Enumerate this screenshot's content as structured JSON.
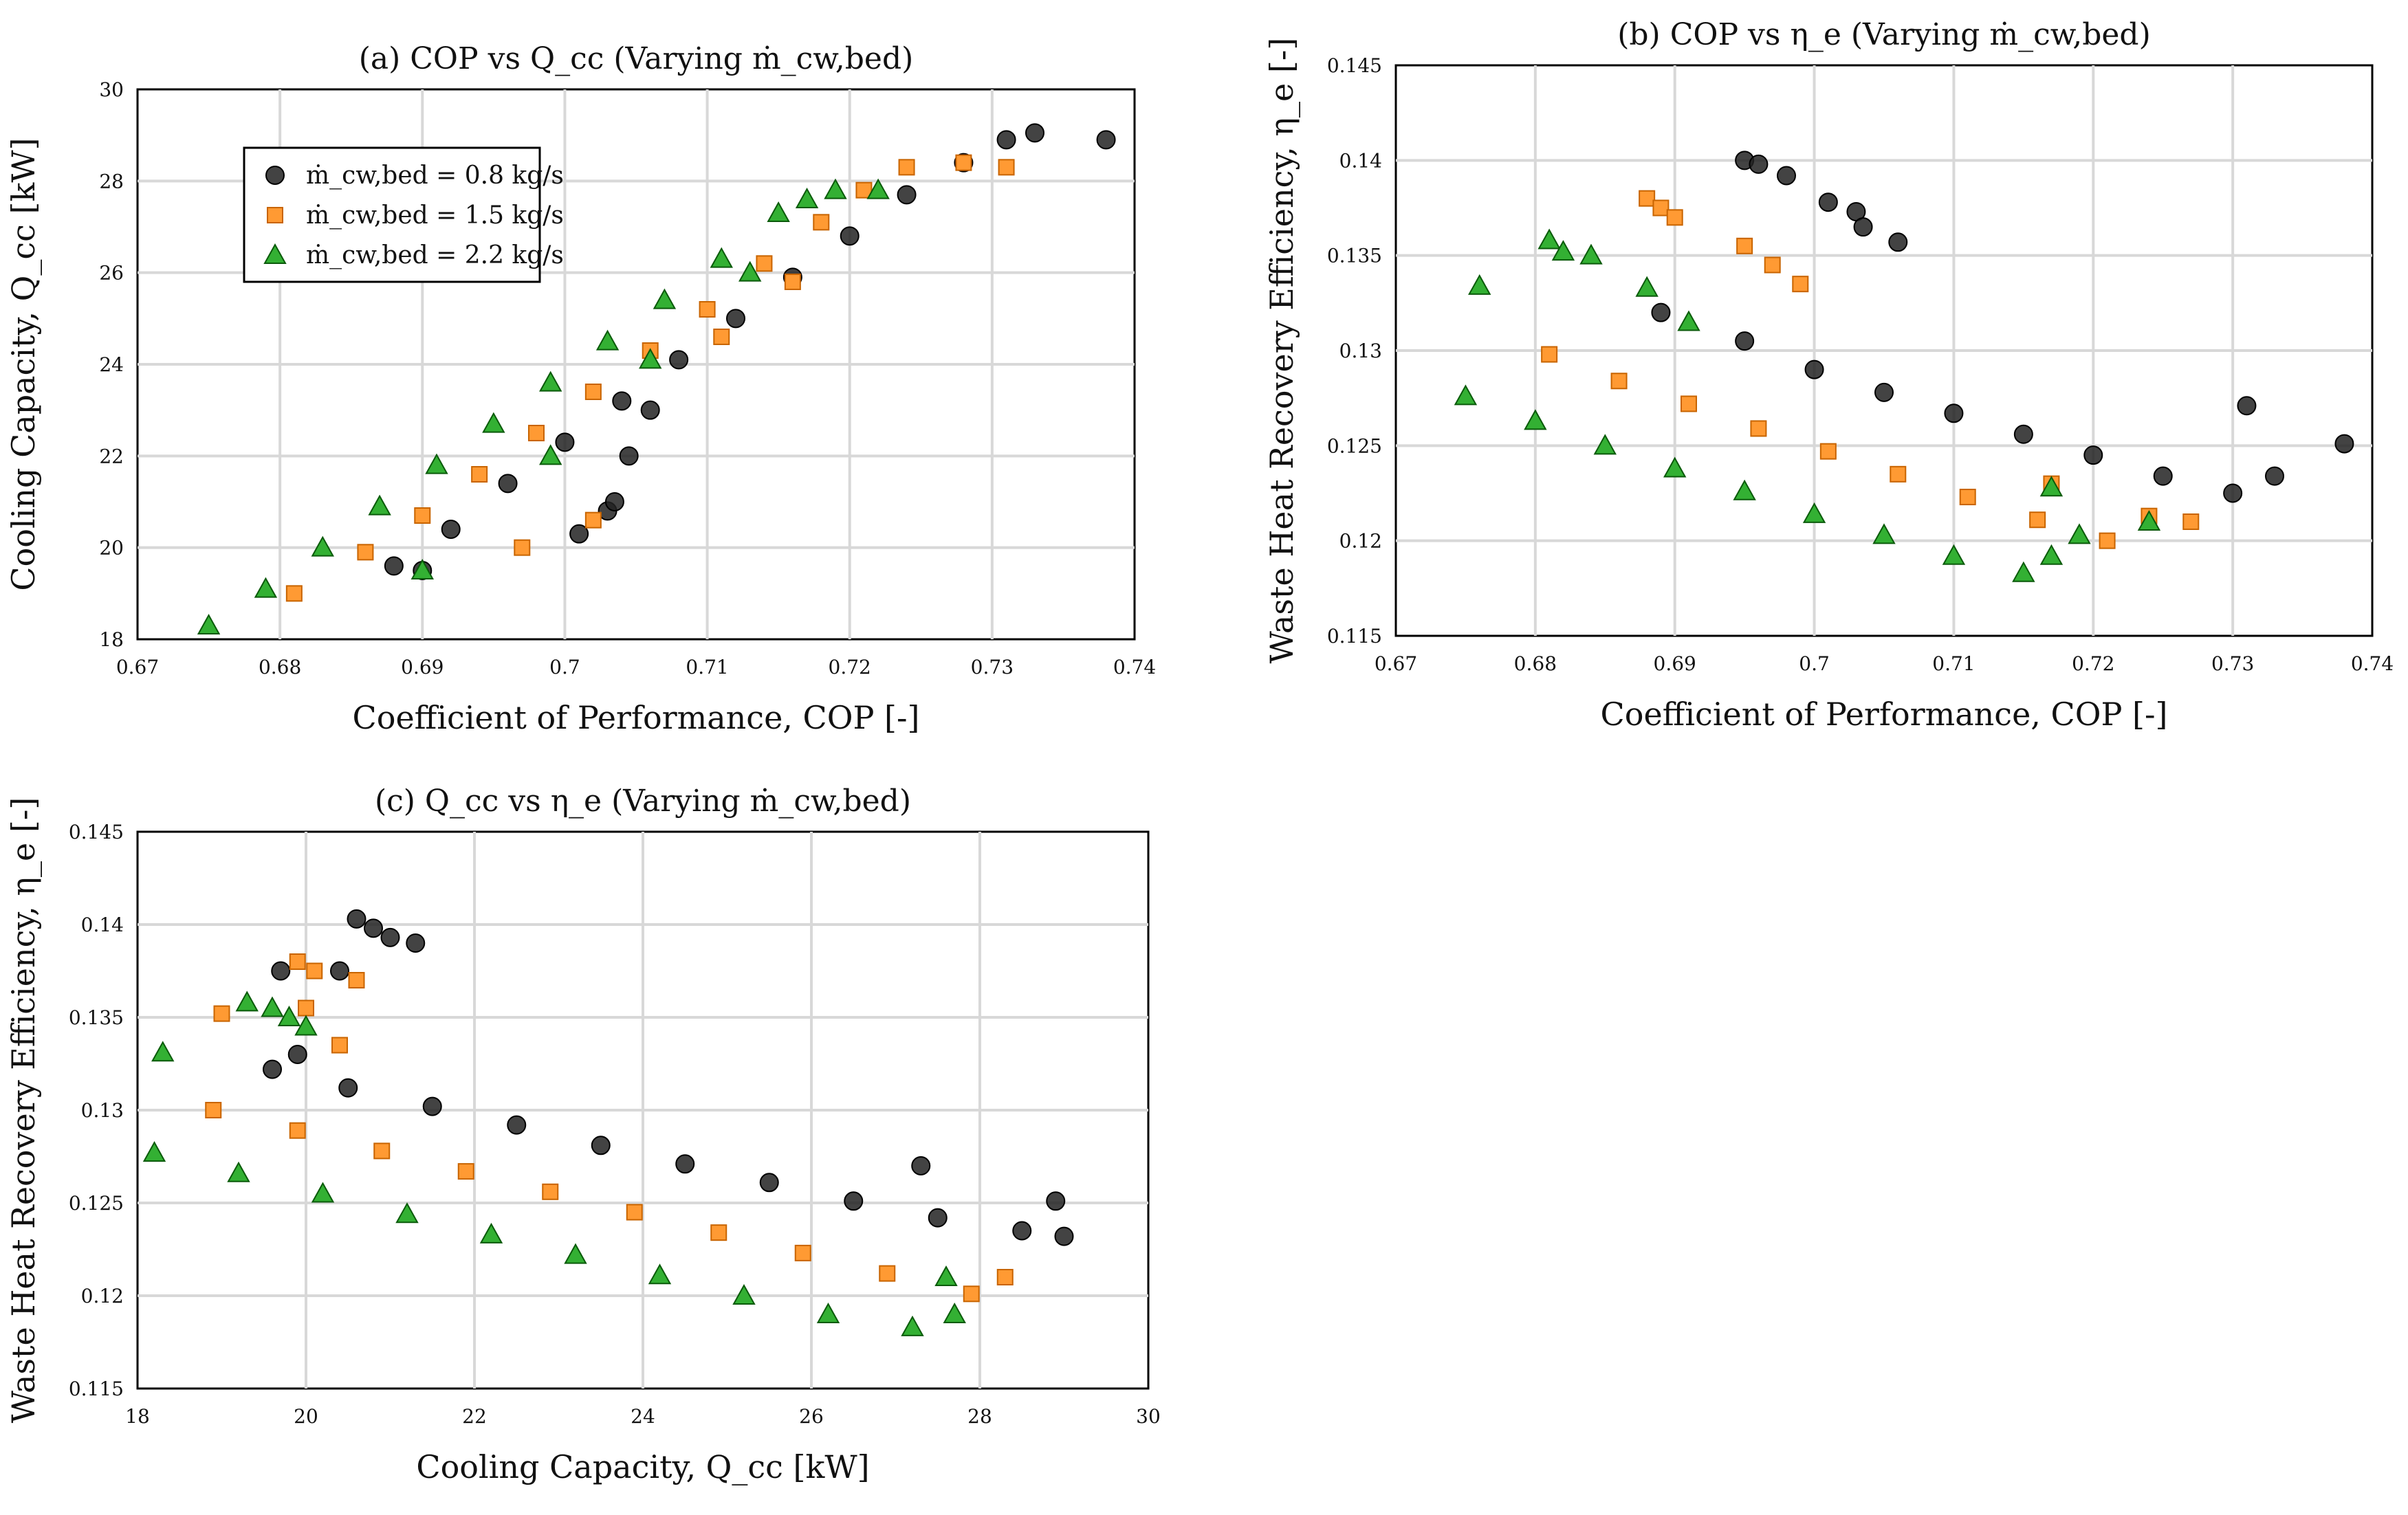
{
  "figure": {
    "legend": {
      "entries": [
        {
          "label": "ṁ_cw,bed = 0.8 kg/s",
          "color": "#000000",
          "marker": "circle"
        },
        {
          "label": "ṁ_cw,bed = 1.5 kg/s",
          "color": "#ff8c1a",
          "marker": "square"
        },
        {
          "label": "ṁ_cw,bed = 2.2 kg/s",
          "color": "#22a022",
          "marker": "triangle"
        }
      ]
    }
  },
  "chart_data": [
    {
      "type": "scatter",
      "title": "(a) COP vs Q_cc (Varying ṁ_cw,bed)",
      "xlabel": "Coefficient of Performance, COP [-]",
      "ylabel": "Cooling Capacity, Q_cc [kW]",
      "xlim": [
        0.67,
        0.74
      ],
      "ylim": [
        18,
        30
      ],
      "xticks": [
        "0.67",
        "0.68",
        "0.69",
        "0.7",
        "0.71",
        "0.72",
        "0.73",
        "0.74"
      ],
      "yticks": [
        "18",
        "20",
        "22",
        "24",
        "26",
        "28",
        "30"
      ],
      "grid": true,
      "legend_position": "top-left",
      "series": [
        {
          "name": "ṁ_cw,bed = 0.8 kg/s",
          "color": "#000000",
          "marker": "circle",
          "x": [
            0.688,
            0.692,
            0.696,
            0.7,
            0.704,
            0.708,
            0.712,
            0.716,
            0.72,
            0.724,
            0.728,
            0.731,
            0.733,
            0.738,
            0.701,
            0.703,
            0.7035,
            0.7045,
            0.69,
            0.706
          ],
          "y": [
            19.6,
            20.4,
            21.4,
            22.3,
            23.2,
            24.1,
            25.0,
            25.9,
            26.8,
            27.7,
            28.4,
            28.9,
            29.05,
            28.9,
            20.3,
            20.8,
            21.0,
            22.0,
            19.5,
            23.0
          ]
        },
        {
          "name": "ṁ_cw,bed = 1.5 kg/s",
          "color": "#ff8c1a",
          "marker": "square",
          "x": [
            0.681,
            0.686,
            0.69,
            0.694,
            0.698,
            0.702,
            0.706,
            0.71,
            0.714,
            0.718,
            0.721,
            0.724,
            0.728,
            0.731,
            0.697,
            0.702,
            0.711,
            0.716
          ],
          "y": [
            19.0,
            19.9,
            20.7,
            21.6,
            22.5,
            23.4,
            24.3,
            25.2,
            26.2,
            27.1,
            27.8,
            28.3,
            28.4,
            28.3,
            20.0,
            20.6,
            24.6,
            25.8
          ]
        },
        {
          "name": "ṁ_cw,bed = 2.2 kg/s",
          "color": "#22a022",
          "marker": "triangle",
          "x": [
            0.675,
            0.679,
            0.683,
            0.687,
            0.691,
            0.695,
            0.699,
            0.703,
            0.707,
            0.711,
            0.715,
            0.717,
            0.719,
            0.722,
            0.69,
            0.699,
            0.706,
            0.713
          ],
          "y": [
            18.3,
            19.1,
            20.0,
            20.9,
            21.8,
            22.7,
            23.6,
            24.5,
            25.4,
            26.3,
            27.3,
            27.6,
            27.8,
            27.8,
            19.5,
            22.0,
            24.1,
            26.0
          ]
        }
      ]
    },
    {
      "type": "scatter",
      "title": "(b) COP vs η_e (Varying ṁ_cw,bed)",
      "xlabel": "Coefficient of Performance, COP [-]",
      "ylabel": "Waste Heat Recovery Efficiency, η_e [-]",
      "xlim": [
        0.67,
        0.74
      ],
      "ylim": [
        0.115,
        0.145
      ],
      "xticks": [
        "0.67",
        "0.68",
        "0.69",
        "0.7",
        "0.71",
        "0.72",
        "0.73",
        "0.74"
      ],
      "yticks": [
        "0.115",
        "0.12",
        "0.125",
        "0.13",
        "0.135",
        "0.14",
        "0.145"
      ],
      "grid": true,
      "series": [
        {
          "name": "ṁ_cw,bed = 0.8 kg/s",
          "color": "#000000",
          "marker": "circle",
          "x": [
            0.689,
            0.695,
            0.7,
            0.705,
            0.71,
            0.715,
            0.72,
            0.725,
            0.73,
            0.733,
            0.738,
            0.695,
            0.696,
            0.698,
            0.701,
            0.703,
            0.7035,
            0.706,
            0.731
          ],
          "y": [
            0.132,
            0.1305,
            0.129,
            0.1278,
            0.1267,
            0.1256,
            0.1245,
            0.1234,
            0.1225,
            0.1234,
            0.1251,
            0.14,
            0.1398,
            0.1392,
            0.1378,
            0.1373,
            0.1365,
            0.1357,
            0.1271
          ]
        },
        {
          "name": "ṁ_cw,bed = 1.5 kg/s",
          "color": "#ff8c1a",
          "marker": "square",
          "x": [
            0.681,
            0.686,
            0.691,
            0.696,
            0.701,
            0.706,
            0.711,
            0.716,
            0.721,
            0.724,
            0.727,
            0.688,
            0.689,
            0.69,
            0.695,
            0.697,
            0.699,
            0.717
          ],
          "y": [
            0.1298,
            0.1284,
            0.1272,
            0.1259,
            0.1247,
            0.1235,
            0.1223,
            0.1211,
            0.12,
            0.1213,
            0.121,
            0.138,
            0.1375,
            0.137,
            0.1355,
            0.1345,
            0.1335,
            0.123
          ]
        },
        {
          "name": "ṁ_cw,bed = 2.2 kg/s",
          "color": "#22a022",
          "marker": "triangle",
          "x": [
            0.675,
            0.68,
            0.685,
            0.69,
            0.695,
            0.7,
            0.705,
            0.71,
            0.715,
            0.717,
            0.719,
            0.724,
            0.676,
            0.681,
            0.682,
            0.684,
            0.688,
            0.691,
            0.717
          ],
          "y": [
            0.1276,
            0.1263,
            0.125,
            0.1238,
            0.1226,
            0.1214,
            0.1203,
            0.1192,
            0.1183,
            0.1192,
            0.1203,
            0.121,
            0.1334,
            0.1358,
            0.1352,
            0.135,
            0.1333,
            0.1315,
            0.1228
          ]
        }
      ]
    },
    {
      "type": "scatter",
      "title": "(c) Q_cc vs η_e (Varying ṁ_cw,bed)",
      "xlabel": "Cooling Capacity, Q_cc [kW]",
      "ylabel": "Waste Heat Recovery Efficiency, η_e [-]",
      "xlim": [
        18,
        30
      ],
      "ylim": [
        0.115,
        0.145
      ],
      "xticks": [
        "18",
        "20",
        "22",
        "24",
        "26",
        "28",
        "30"
      ],
      "yticks": [
        "0.115",
        "0.12",
        "0.125",
        "0.13",
        "0.135",
        "0.14",
        "0.145"
      ],
      "grid": true,
      "series": [
        {
          "name": "ṁ_cw,bed = 0.8 kg/s",
          "color": "#000000",
          "marker": "circle",
          "x": [
            19.6,
            20.5,
            21.5,
            22.5,
            23.5,
            24.5,
            25.5,
            26.5,
            27.5,
            28.5,
            29.0,
            19.7,
            19.9,
            20.6,
            20.8,
            21.0,
            21.3,
            20.4,
            27.3,
            28.9
          ],
          "y": [
            0.1322,
            0.1312,
            0.1302,
            0.1292,
            0.1281,
            0.1271,
            0.1261,
            0.1251,
            0.1242,
            0.1235,
            0.1232,
            0.1375,
            0.133,
            0.1403,
            0.1398,
            0.1393,
            0.139,
            0.1375,
            0.127,
            0.1251
          ]
        },
        {
          "name": "ṁ_cw,bed = 1.5 kg/s",
          "color": "#ff8c1a",
          "marker": "square",
          "x": [
            18.9,
            19.9,
            20.9,
            21.9,
            22.9,
            23.9,
            24.9,
            25.9,
            26.9,
            27.9,
            28.3,
            19.0,
            19.9,
            20.1,
            20.6,
            20.4,
            20.0
          ],
          "y": [
            0.13,
            0.1289,
            0.1278,
            0.1267,
            0.1256,
            0.1245,
            0.1234,
            0.1223,
            0.1212,
            0.1201,
            0.121,
            0.1352,
            0.138,
            0.1375,
            0.137,
            0.1335,
            0.1355
          ]
        },
        {
          "name": "ṁ_cw,bed = 2.2 kg/s",
          "color": "#22a022",
          "marker": "triangle",
          "x": [
            18.2,
            19.2,
            20.2,
            21.2,
            22.2,
            23.2,
            24.2,
            25.2,
            26.2,
            27.2,
            27.7,
            18.3,
            19.3,
            19.6,
            19.8,
            20.0,
            27.6
          ],
          "y": [
            0.1277,
            0.1266,
            0.1255,
            0.1244,
            0.1233,
            0.1222,
            0.1211,
            0.12,
            0.119,
            0.1183,
            0.119,
            0.1331,
            0.1358,
            0.1355,
            0.135,
            0.1345,
            0.121
          ]
        }
      ]
    }
  ]
}
